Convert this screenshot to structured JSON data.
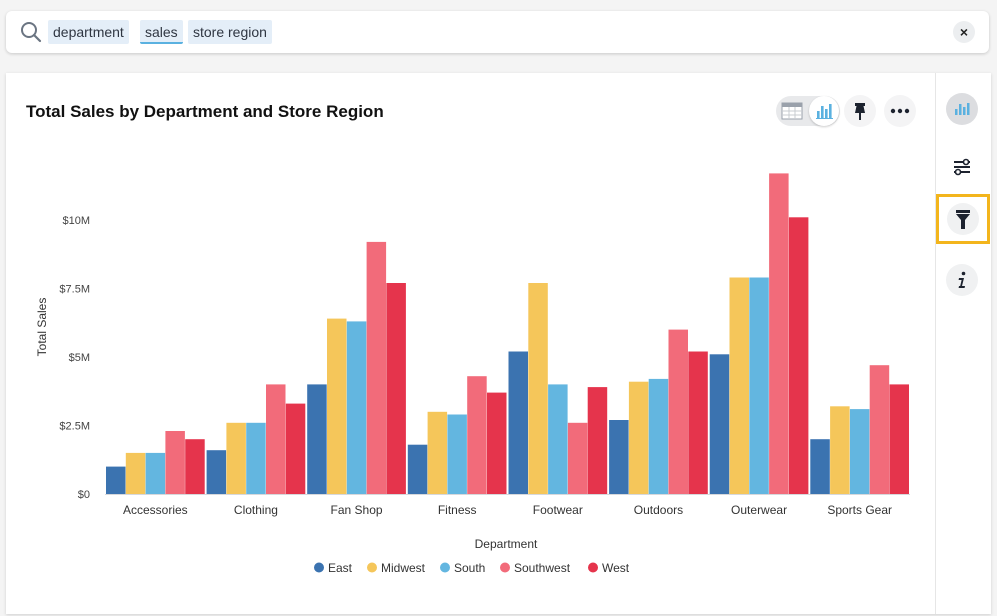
{
  "search": {
    "tokens": [
      "department",
      "sales",
      "store region"
    ],
    "active_token_index": 1,
    "clear_label": "×"
  },
  "toolbar": {
    "icons": [
      "table-view-icon",
      "chart-view-icon",
      "pin-icon",
      "more-icon"
    ],
    "selected_view": "chart"
  },
  "sidebar": {
    "icons": [
      "chart-type-icon",
      "settings-icon",
      "filter-icon",
      "info-icon"
    ],
    "highlighted": "filter-icon"
  },
  "colors": {
    "accent": "#5ab1e0",
    "highlight_border": "#f3b51c"
  },
  "chart_data": {
    "type": "bar",
    "title": "Total Sales by Department and Store Region",
    "xlabel": "Department",
    "ylabel": "Total Sales",
    "ylim": [
      0,
      12000000
    ],
    "yticks": [
      0,
      2500000,
      5000000,
      7500000,
      10000000
    ],
    "ytick_labels": [
      "$0",
      "$2.5M",
      "$5M",
      "$7.5M",
      "$10M"
    ],
    "grid": false,
    "legend_position": "bottom-center",
    "categories": [
      "Accessories",
      "Clothing",
      "Fan Shop",
      "Fitness",
      "Footwear",
      "Outdoors",
      "Outerwear",
      "Sports Gear"
    ],
    "series": [
      {
        "name": "East",
        "color": "#3b73b0",
        "values": [
          1000000,
          1600000,
          4000000,
          1800000,
          5200000,
          2700000,
          5100000,
          2000000
        ]
      },
      {
        "name": "Midwest",
        "color": "#f5c65a",
        "values": [
          1500000,
          2600000,
          6400000,
          3000000,
          7700000,
          4100000,
          7900000,
          3200000
        ]
      },
      {
        "name": "South",
        "color": "#63b6e0",
        "values": [
          1500000,
          2600000,
          6300000,
          2900000,
          4000000,
          4200000,
          7900000,
          3100000
        ]
      },
      {
        "name": "Southwest",
        "color": "#f26b7a",
        "values": [
          2300000,
          4000000,
          9200000,
          4300000,
          2600000,
          6000000,
          11700000,
          4700000
        ]
      },
      {
        "name": "West",
        "color": "#e5344c",
        "values": [
          2000000,
          3300000,
          7700000,
          3700000,
          3900000,
          5200000,
          10100000,
          4000000
        ]
      }
    ]
  }
}
